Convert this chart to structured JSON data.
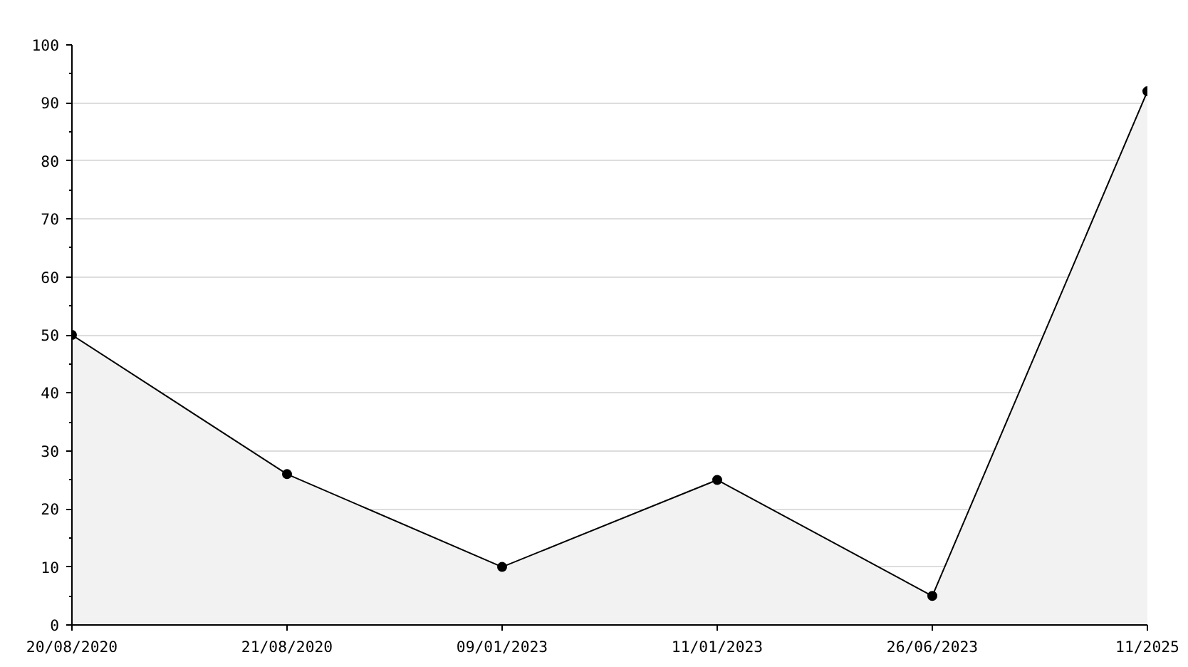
{
  "chart_data": {
    "type": "area",
    "categories": [
      "20/08/2020",
      "21/08/2020",
      "09/01/2023",
      "11/01/2023",
      "26/06/2023",
      "11/2025"
    ],
    "series": [
      {
        "color": "#000000",
        "values": [
          50,
          26,
          10,
          25,
          5,
          92
        ]
      }
    ],
    "ylim": [
      0,
      100
    ],
    "yticks": [
      0,
      10,
      20,
      30,
      40,
      50,
      60,
      70,
      80,
      90,
      100
    ],
    "grid": "y",
    "marker": "circle",
    "line_style": "solid"
  }
}
